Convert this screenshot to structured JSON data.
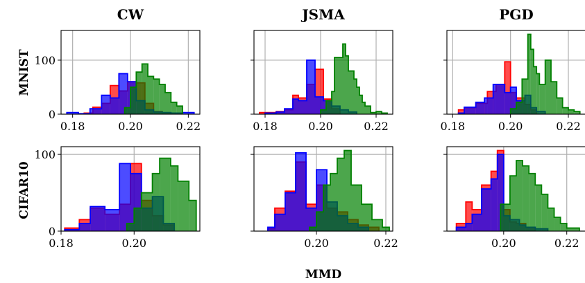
{
  "figure": {
    "columns": [
      "CW",
      "JSMA",
      "PGD"
    ],
    "rows": [
      "MNIST",
      "CIFAR10"
    ],
    "xlabel": "MMD"
  },
  "colors": {
    "red": "#ff0000",
    "blue": "#0000ff",
    "green": "#008000",
    "grid": "#b0b0b0"
  },
  "chart_data": [
    {
      "type": "histogram",
      "row": "MNIST",
      "column": "CW",
      "xlim": [
        0.176,
        0.224
      ],
      "ylim": [
        0,
        155
      ],
      "xticks": [
        0.18,
        0.2,
        0.22
      ],
      "xtick_labels": [
        "0.18",
        "0.20",
        "0.22"
      ],
      "yticks": [
        0,
        100
      ],
      "ytick_labels": [
        "0",
        "100"
      ],
      "show_yticklabels": true,
      "grid": true,
      "series": [
        {
          "color": "red",
          "edges": [
            0.184,
            0.187,
            0.19,
            0.193,
            0.196,
            0.199,
            0.202,
            0.205,
            0.208,
            0.211,
            0.214
          ],
          "counts": [
            2,
            13,
            20,
            53,
            43,
            60,
            58,
            20,
            5,
            2
          ]
        },
        {
          "color": "blue",
          "edges": [
            0.178,
            0.182,
            0.186,
            0.19,
            0.193,
            0.196,
            0.199,
            0.202,
            0.205,
            0.208,
            0.211,
            0.214,
            0.218,
            0.222
          ],
          "counts": [
            3,
            1,
            10,
            35,
            30,
            75,
            60,
            25,
            8,
            4,
            3,
            2,
            3
          ]
        },
        {
          "color": "green",
          "edges": [
            0.198,
            0.2,
            0.202,
            0.204,
            0.206,
            0.208,
            0.21,
            0.212,
            0.214,
            0.216,
            0.218
          ],
          "counts": [
            12,
            50,
            78,
            93,
            70,
            65,
            55,
            40,
            22,
            15
          ]
        }
      ]
    },
    {
      "type": "histogram",
      "row": "MNIST",
      "column": "JSMA",
      "xlim": [
        0.176,
        0.226
      ],
      "ylim": [
        0,
        155
      ],
      "xticks": [
        0.18,
        0.2,
        0.22
      ],
      "xtick_labels": [
        "0.18",
        "0.20",
        "0.22"
      ],
      "yticks": [
        0,
        100
      ],
      "ytick_labels": [
        "0",
        "100"
      ],
      "show_yticklabels": false,
      "grid": true,
      "series": [
        {
          "color": "red",
          "edges": [
            0.178,
            0.184,
            0.187,
            0.19,
            0.192,
            0.195,
            0.198,
            0.201,
            0.204,
            0.207
          ],
          "counts": [
            3,
            5,
            8,
            35,
            30,
            55,
            83,
            28,
            10
          ]
        },
        {
          "color": "blue",
          "edges": [
            0.18,
            0.184,
            0.187,
            0.19,
            0.192,
            0.195,
            0.198,
            0.201,
            0.204,
            0.207,
            0.21,
            0.213
          ],
          "counts": [
            2,
            4,
            10,
            28,
            25,
            100,
            32,
            25,
            15,
            8,
            4
          ]
        },
        {
          "color": "green",
          "edges": [
            0.2,
            0.202,
            0.204,
            0.205,
            0.206,
            0.208,
            0.209,
            0.21,
            0.212,
            0.213,
            0.214,
            0.215,
            0.216,
            0.218,
            0.22,
            0.222,
            0.224
          ],
          "counts": [
            8,
            25,
            42,
            105,
            105,
            130,
            108,
            80,
            65,
            50,
            35,
            22,
            15,
            3,
            5,
            2
          ]
        }
      ]
    },
    {
      "type": "histogram",
      "row": "MNIST",
      "column": "PGD",
      "xlim": [
        0.178,
        0.226
      ],
      "ylim": [
        0,
        155
      ],
      "xticks": [
        0.18,
        0.2,
        0.22
      ],
      "xtick_labels": [
        "0.18",
        "0.20",
        "0.22"
      ],
      "yticks": [
        0,
        100
      ],
      "ytick_labels": [
        "0",
        "100"
      ],
      "show_yticklabels": false,
      "grid": true,
      "series": [
        {
          "color": "red",
          "edges": [
            0.182,
            0.184,
            0.188,
            0.192,
            0.195,
            0.198,
            0.2,
            0.202,
            0.205,
            0.207,
            0.209
          ],
          "counts": [
            8,
            12,
            20,
            42,
            55,
            97,
            40,
            30,
            18,
            8
          ]
        },
        {
          "color": "blue",
          "edges": [
            0.182,
            0.184,
            0.188,
            0.191,
            0.194,
            0.198,
            0.2,
            0.202,
            0.205,
            0.207,
            0.209,
            0.212
          ],
          "counts": [
            2,
            13,
            22,
            30,
            55,
            40,
            50,
            25,
            35,
            12,
            5
          ]
        },
        {
          "color": "green",
          "edges": [
            0.2,
            0.202,
            0.204,
            0.206,
            0.207,
            0.208,
            0.209,
            0.21,
            0.212,
            0.214,
            0.216,
            0.218,
            0.22,
            0.222,
            0.224
          ],
          "counts": [
            10,
            22,
            65,
            148,
            120,
            88,
            75,
            55,
            100,
            60,
            30,
            12,
            8,
            5
          ]
        }
      ]
    },
    {
      "type": "histogram",
      "row": "CIFAR10",
      "column": "CW",
      "xlim": [
        0.18,
        0.218
      ],
      "ylim": [
        0,
        110
      ],
      "xticks": [
        0.18,
        0.2
      ],
      "xtick_labels": [
        "0.18",
        "0.20"
      ],
      "yticks": [
        0,
        100
      ],
      "ytick_labels": [
        "0",
        "100"
      ],
      "show_yticklabels": true,
      "grid": true,
      "series": [
        {
          "color": "red",
          "edges": [
            0.181,
            0.185,
            0.188,
            0.192,
            0.196,
            0.199,
            0.202,
            0.205,
            0.208,
            0.211
          ],
          "counts": [
            4,
            15,
            30,
            22,
            35,
            88,
            40,
            20,
            8
          ]
        },
        {
          "color": "blue",
          "edges": [
            0.181,
            0.185,
            0.188,
            0.192,
            0.196,
            0.199,
            0.202,
            0.205,
            0.208,
            0.211
          ],
          "counts": [
            2,
            10,
            32,
            28,
            88,
            75,
            30,
            45,
            10
          ]
        },
        {
          "color": "green",
          "edges": [
            0.198,
            0.2,
            0.202,
            0.205,
            0.207,
            0.21,
            0.212,
            0.215,
            0.217
          ],
          "counts": [
            10,
            30,
            50,
            75,
            95,
            85,
            65,
            40
          ]
        }
      ]
    },
    {
      "type": "histogram",
      "row": "CIFAR10",
      "column": "JSMA",
      "xlim": [
        0.182,
        0.222
      ],
      "ylim": [
        0,
        110
      ],
      "xticks": [
        0.2,
        0.22
      ],
      "xtick_labels": [
        "0.20",
        "0.22"
      ],
      "yticks": [
        0,
        100
      ],
      "ytick_labels": [
        "0",
        "100"
      ],
      "show_yticklabels": false,
      "grid": true,
      "series": [
        {
          "color": "red",
          "edges": [
            0.186,
            0.188,
            0.191,
            0.194,
            0.197,
            0.2,
            0.203,
            0.206,
            0.209,
            0.212,
            0.215,
            0.218
          ],
          "counts": [
            3,
            30,
            52,
            90,
            35,
            60,
            30,
            25,
            15,
            8,
            5
          ]
        },
        {
          "color": "blue",
          "edges": [
            0.186,
            0.188,
            0.191,
            0.194,
            0.197,
            0.2,
            0.203,
            0.206,
            0.209,
            0.212,
            0.215
          ],
          "counts": [
            5,
            22,
            50,
            102,
            30,
            80,
            38,
            20,
            10,
            5
          ]
        },
        {
          "color": "green",
          "edges": [
            0.198,
            0.2,
            0.202,
            0.204,
            0.206,
            0.208,
            0.21,
            0.213,
            0.216,
            0.219,
            0.221
          ],
          "counts": [
            5,
            25,
            60,
            75,
            95,
            105,
            60,
            35,
            15,
            5
          ]
        }
      ]
    },
    {
      "type": "histogram",
      "row": "CIFAR10",
      "column": "PGD",
      "xlim": [
        0.182,
        0.226
      ],
      "ylim": [
        0,
        110
      ],
      "xticks": [
        0.2,
        0.22
      ],
      "xtick_labels": [
        "0.20",
        "0.22"
      ],
      "yticks": [
        0,
        100
      ],
      "ytick_labels": [
        "0",
        "100"
      ],
      "show_yticklabels": false,
      "grid": true,
      "series": [
        {
          "color": "red",
          "edges": [
            0.185,
            0.188,
            0.19,
            0.193,
            0.196,
            0.198,
            0.2,
            0.202,
            0.204,
            0.207,
            0.21
          ],
          "counts": [
            10,
            38,
            28,
            60,
            78,
            105,
            28,
            12,
            10,
            5
          ]
        },
        {
          "color": "blue",
          "edges": [
            0.185,
            0.188,
            0.19,
            0.193,
            0.196,
            0.198,
            0.2,
            0.202,
            0.205,
            0.207,
            0.21,
            0.214
          ],
          "counts": [
            5,
            10,
            22,
            55,
            68,
            100,
            20,
            15,
            8,
            5,
            3
          ]
        },
        {
          "color": "green",
          "edges": [
            0.199,
            0.202,
            0.204,
            0.206,
            0.208,
            0.21,
            0.212,
            0.214,
            0.216,
            0.218,
            0.22,
            0.224
          ],
          "counts": [
            35,
            72,
            92,
            85,
            75,
            60,
            48,
            30,
            18,
            10,
            4
          ]
        }
      ]
    }
  ]
}
